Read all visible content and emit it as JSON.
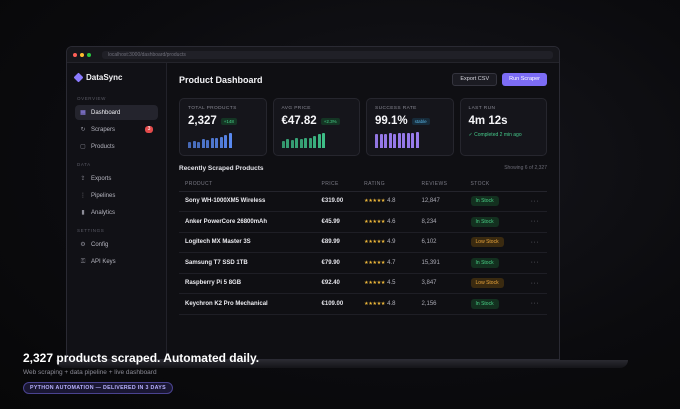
{
  "browser": {
    "url": "localhost:3000/dashboard/products"
  },
  "brand": {
    "name": "DataSync"
  },
  "sidebar": {
    "sections": [
      {
        "label": "OVERVIEW",
        "items": [
          {
            "label": "Dashboard",
            "icon": "grid-icon",
            "active": true
          },
          {
            "label": "Scrapers",
            "icon": "refresh-icon",
            "badge": "3"
          },
          {
            "label": "Products",
            "icon": "box-icon"
          }
        ]
      },
      {
        "label": "DATA",
        "items": [
          {
            "label": "Exports",
            "icon": "export-icon"
          },
          {
            "label": "Pipelines",
            "icon": "pipeline-icon"
          },
          {
            "label": "Analytics",
            "icon": "chart-icon"
          }
        ]
      },
      {
        "label": "SETTINGS",
        "items": [
          {
            "label": "Config",
            "icon": "gear-icon"
          },
          {
            "label": "API Keys",
            "icon": "key-icon"
          }
        ]
      }
    ]
  },
  "header": {
    "title": "Product Dashboard",
    "export_label": "Export CSV",
    "run_label": "Run Scraper"
  },
  "stats": [
    {
      "label": "TOTAL PRODUCTS",
      "value": "2,327",
      "delta": "+148",
      "delta_color": "green",
      "bars": [
        0.35,
        0.45,
        0.4,
        0.55,
        0.5,
        0.6,
        0.65,
        0.7,
        0.8,
        0.95
      ],
      "bar_color": "#5b8cf5"
    },
    {
      "label": "AVG PRICE",
      "value": "€47.82",
      "delta": "+2.3%",
      "delta_color": "green",
      "bars": [
        0.45,
        0.55,
        0.5,
        0.6,
        0.55,
        0.65,
        0.6,
        0.75,
        0.85,
        0.95
      ],
      "bar_color": "#3fc28a"
    },
    {
      "label": "SUCCESS RATE",
      "value": "99.1%",
      "delta": "stable",
      "delta_color": "blue",
      "bars": [
        0.85,
        0.9,
        0.88,
        0.92,
        0.9,
        0.93,
        0.91,
        0.94,
        0.95,
        0.97
      ],
      "bar_color": "#9b7df0"
    },
    {
      "label": "LAST RUN",
      "value": "4m 12s",
      "sub": "✓ Completed 2 min ago"
    }
  ],
  "table": {
    "title": "Recently Scraped Products",
    "meta": "Showing 6 of 2,327",
    "columns": [
      "PRODUCT",
      "PRICE",
      "RATING",
      "REVIEWS",
      "STOCK"
    ],
    "rows": [
      {
        "product": "Sony WH-1000XM5 Wireless",
        "price": "€319.00",
        "stars": "★★★★★",
        "rating": "4.8",
        "reviews": "12,847",
        "stock": "In Stock",
        "stock_level": "in"
      },
      {
        "product": "Anker PowerCore 26800mAh",
        "price": "€45.99",
        "stars": "★★★★★",
        "rating": "4.6",
        "reviews": "8,234",
        "stock": "In Stock",
        "stock_level": "in"
      },
      {
        "product": "Logitech MX Master 3S",
        "price": "€89.99",
        "stars": "★★★★★",
        "rating": "4.9",
        "reviews": "6,102",
        "stock": "Low Stock",
        "stock_level": "low"
      },
      {
        "product": "Samsung T7 SSD 1TB",
        "price": "€79.90",
        "stars": "★★★★★",
        "rating": "4.7",
        "reviews": "15,391",
        "stock": "In Stock",
        "stock_level": "in"
      },
      {
        "product": "Raspberry Pi 5 8GB",
        "price": "€92.40",
        "stars": "★★★★★",
        "rating": "4.5",
        "reviews": "3,847",
        "stock": "Low Stock",
        "stock_level": "low"
      },
      {
        "product": "Keychron K2 Pro Mechanical",
        "price": "€109.00",
        "stars": "★★★★★",
        "rating": "4.8",
        "reviews": "2,156",
        "stock": "In Stock",
        "stock_level": "in"
      }
    ],
    "row_action": "···"
  },
  "caption": {
    "headline": "2,327 products scraped. Automated daily.",
    "subline": "Web scraping + data pipeline + live dashboard",
    "tag": "PYTHON AUTOMATION — DELIVERED IN 3 DAYS"
  },
  "colors": {
    "accent": "#7c6cf5",
    "in_stock": "#49cf86",
    "low_stock": "#eaa53b"
  }
}
